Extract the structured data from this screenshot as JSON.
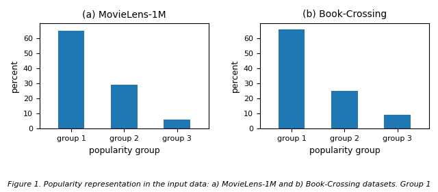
{
  "chart_data": [
    {
      "type": "bar",
      "title": "(a) MovieLens-1M",
      "categories": [
        "group 1",
        "group 2",
        "group 3"
      ],
      "values": [
        65,
        29,
        6
      ],
      "xlabel": "popularity group",
      "ylabel": "percent",
      "ylim": [
        0,
        70
      ],
      "yticks": [
        0,
        10,
        20,
        30,
        40,
        50,
        60
      ],
      "grid": false
    },
    {
      "type": "bar",
      "title": "(b) Book-Crossing",
      "categories": [
        "group 1",
        "group 2",
        "group 3"
      ],
      "values": [
        66,
        25,
        9
      ],
      "xlabel": "popularity group",
      "ylabel": "percent",
      "ylim": [
        0,
        70
      ],
      "yticks": [
        0,
        10,
        20,
        30,
        40,
        50,
        60
      ],
      "grid": false
    }
  ],
  "caption": "Figure 1. Popularity representation in the input data: a) MovieLens-1M and b) Book-Crossing datasets. Group 1"
}
